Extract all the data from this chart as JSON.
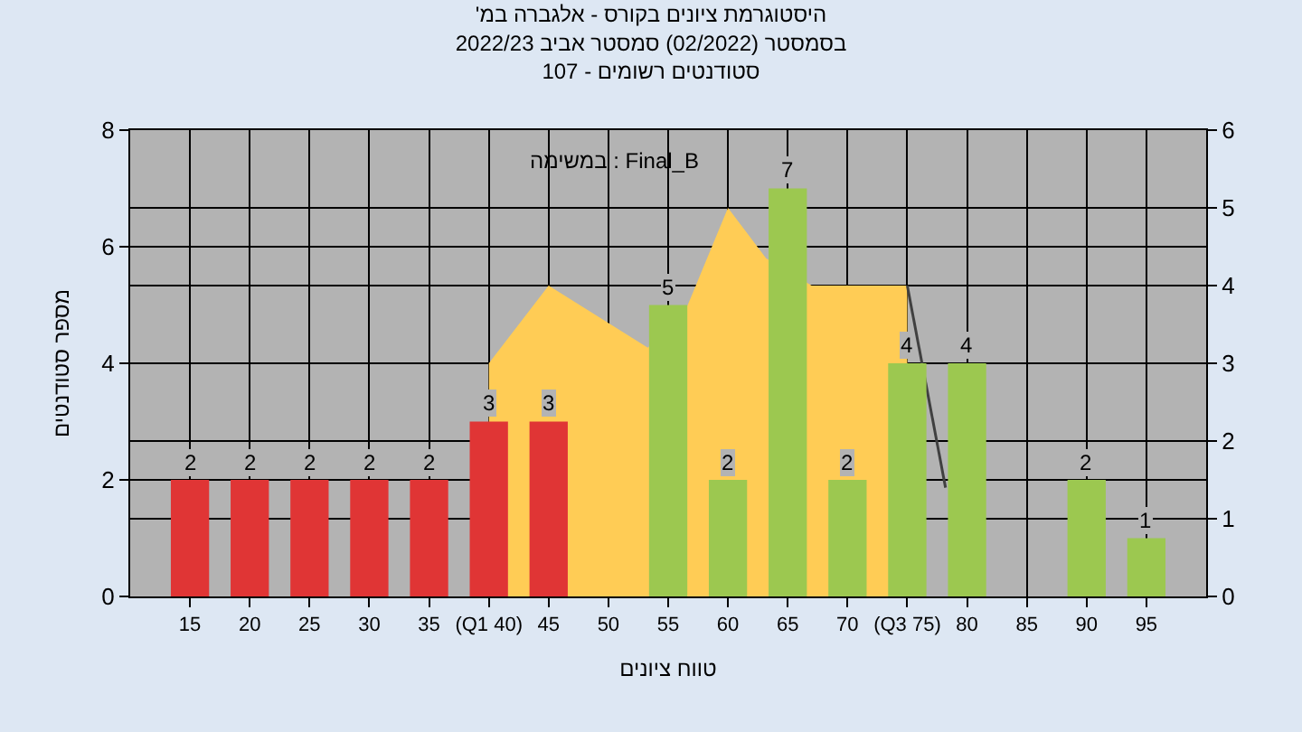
{
  "chart_data": {
    "type": "bar",
    "title": "היסטוגרמת ציונים בקורס - אלגברה במ'\nבסמסטר (02/2022) סמסטר אביב 2022/23\nסטודנטים רשומים - 107",
    "xlabel": "טווח ציונים",
    "ylabel": "מספר סטודנטים",
    "annotations": [
      "במשימה : Final_B"
    ],
    "x": [
      15,
      20,
      25,
      30,
      35,
      40,
      45,
      50,
      55,
      60,
      65,
      70,
      75,
      80,
      85,
      90,
      95
    ],
    "series": [
      {
        "type": "area",
        "axis": "y2",
        "color": "#ffcc55",
        "x": [
          40,
          45,
          53.3,
          56.5,
          60,
          63.2,
          67,
          75
        ],
        "values": [
          3,
          4,
          3.2,
          3.7,
          5,
          4.35,
          4,
          4
        ]
      },
      {
        "type": "line",
        "axis": "y2",
        "color": "#404040",
        "x": [
          75,
          78.2
        ],
        "values": [
          4,
          1.4
        ]
      },
      {
        "colors": [
          "#e03535",
          "#e03535",
          "#e03535",
          "#e03535",
          "#e03535",
          "#e03535",
          "#e03535",
          null,
          "#9cc850",
          "#9cc850",
          "#9cc850",
          "#9cc850",
          "#9cc850",
          "#9cc850",
          null,
          "#9cc850",
          "#9cc850"
        ],
        "values": [
          2,
          2,
          2,
          2,
          2,
          3,
          3,
          null,
          5,
          2,
          7,
          2,
          4,
          4,
          null,
          2,
          1
        ],
        "value_labels": [
          "2",
          "2",
          "2",
          "2",
          "2",
          "3",
          "3",
          null,
          "5",
          "2",
          "7",
          "2",
          "4",
          "4",
          null,
          "2",
          "1"
        ]
      }
    ],
    "xlim": [
      10,
      100
    ],
    "xticks": [
      15,
      20,
      25,
      30,
      35,
      {
        "value": 40,
        "label": "(Q1 40)"
      },
      45,
      50,
      55,
      60,
      65,
      70,
      {
        "value": 75,
        "label": "(Q3 75)"
      },
      80,
      85,
      90,
      95
    ],
    "ylim": [
      0,
      8
    ],
    "yticks": [
      0,
      2,
      4,
      6,
      8
    ],
    "y2lim": [
      0,
      6
    ],
    "y2ticks": [
      0,
      1,
      2,
      3,
      4,
      5,
      6
    ],
    "grid": true
  }
}
